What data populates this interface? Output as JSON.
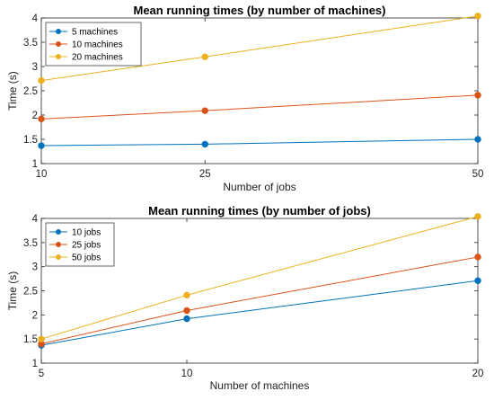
{
  "chart_data": [
    {
      "type": "line",
      "title": "Mean running times (by number of machines)",
      "xlabel": "Number of jobs",
      "ylabel": "Time (s)",
      "x": [
        10,
        25,
        50
      ],
      "xticks": [
        "10",
        "25",
        "50"
      ],
      "xlim": [
        10,
        50
      ],
      "ylim": [
        1,
        4
      ],
      "yticks": [
        "1",
        "1.5",
        "2",
        "2.5",
        "3",
        "3.5",
        "4"
      ],
      "grid": false,
      "legend_position": "top-left",
      "series": [
        {
          "name": "5 machines",
          "color": "#0072BD",
          "values": [
            1.37,
            1.4,
            1.5
          ]
        },
        {
          "name": "10 machines",
          "color": "#D95319",
          "values": [
            1.92,
            2.09,
            2.41
          ]
        },
        {
          "name": "20 machines",
          "color": "#EDB120",
          "values": [
            2.71,
            3.2,
            4.04
          ]
        }
      ]
    },
    {
      "type": "line",
      "title": "Mean running times (by number of jobs)",
      "xlabel": "Number of machines",
      "ylabel": "Time (s)",
      "x": [
        5,
        10,
        20
      ],
      "xticks": [
        "5",
        "10",
        "20"
      ],
      "xlim": [
        5,
        20
      ],
      "ylim": [
        1,
        4
      ],
      "yticks": [
        "1",
        "1.5",
        "2",
        "2.5",
        "3",
        "3.5",
        "4"
      ],
      "grid": false,
      "legend_position": "top-left",
      "series": [
        {
          "name": "10 jobs",
          "color": "#0072BD",
          "values": [
            1.37,
            1.92,
            2.71
          ]
        },
        {
          "name": "25 jobs",
          "color": "#D95319",
          "values": [
            1.4,
            2.09,
            3.2
          ]
        },
        {
          "name": "50 jobs",
          "color": "#EDB120",
          "values": [
            1.5,
            2.41,
            4.04
          ]
        }
      ]
    }
  ]
}
